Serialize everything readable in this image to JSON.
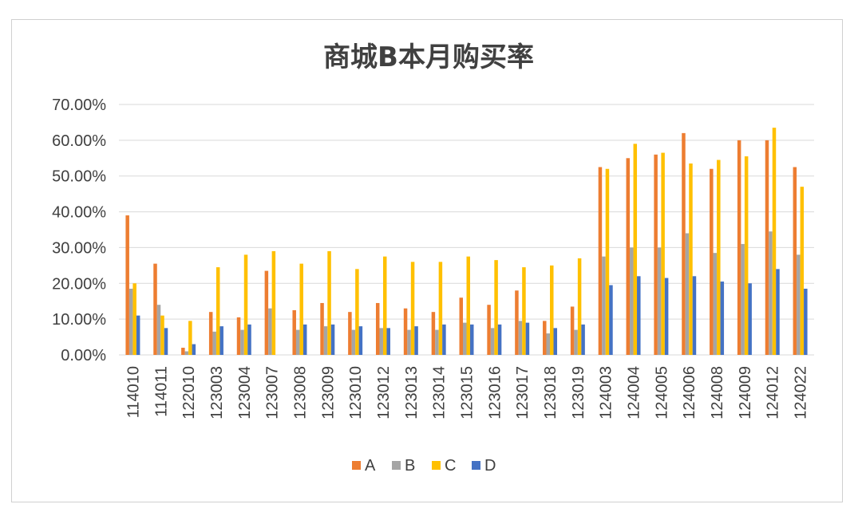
{
  "chart_data": {
    "type": "bar",
    "title": "商城B本月购买率",
    "xlabel": "",
    "ylabel": "",
    "ylim": [
      0,
      70
    ],
    "y_ticks": [
      "0.00%",
      "10.00%",
      "20.00%",
      "30.00%",
      "40.00%",
      "50.00%",
      "60.00%",
      "70.00%"
    ],
    "grid": "horizontal",
    "legend_position": "bottom",
    "categories": [
      "114010",
      "114011",
      "122010",
      "123003",
      "123004",
      "123007",
      "123008",
      "123009",
      "123010",
      "123012",
      "123013",
      "123014",
      "123015",
      "123016",
      "123017",
      "123018",
      "123019",
      "124003",
      "124004",
      "124005",
      "124006",
      "124008",
      "124009",
      "124012",
      "124022"
    ],
    "series": [
      {
        "name": "A",
        "color": "#ED7D31",
        "values": [
          39.0,
          25.5,
          2.0,
          12.0,
          10.5,
          23.5,
          12.5,
          14.5,
          12.0,
          14.5,
          13.0,
          12.0,
          16.0,
          14.0,
          18.0,
          9.5,
          13.5,
          52.5,
          55.0,
          56.0,
          62.0,
          52.0,
          60.0,
          60.0,
          52.5
        ]
      },
      {
        "name": "B",
        "color": "#A5A5A5",
        "values": [
          18.5,
          14.0,
          1.0,
          6.5,
          7.0,
          13.0,
          7.0,
          8.0,
          7.0,
          7.5,
          7.0,
          7.0,
          9.0,
          7.5,
          9.5,
          6.0,
          7.0,
          27.5,
          30.0,
          30.0,
          34.0,
          28.5,
          31.0,
          34.5,
          28.0
        ]
      },
      {
        "name": "C",
        "color": "#FFC000",
        "values": [
          20.0,
          11.0,
          9.5,
          24.5,
          28.0,
          29.0,
          25.5,
          29.0,
          24.0,
          27.5,
          26.0,
          26.0,
          27.5,
          26.5,
          24.5,
          25.0,
          27.0,
          52.0,
          59.0,
          56.5,
          53.5,
          54.5,
          55.5,
          63.5,
          47.0
        ]
      },
      {
        "name": "D",
        "color": "#4472C4",
        "values": [
          11.0,
          7.5,
          3.0,
          8.0,
          8.5,
          0.0,
          8.5,
          8.5,
          8.0,
          7.5,
          8.0,
          8.5,
          8.5,
          8.5,
          9.0,
          7.5,
          8.5,
          19.5,
          22.0,
          21.5,
          22.0,
          20.5,
          20.0,
          24.0,
          18.5
        ]
      }
    ]
  }
}
